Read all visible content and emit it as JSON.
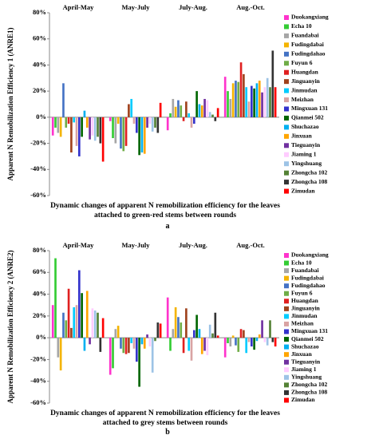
{
  "chart_data": [
    {
      "type": "bar",
      "y_label": "Apparent N Remobilization Efficiency 1 (ANRE1)",
      "x_label": "Dynamic changes of apparent N remobilization efficiency for the leaves attached to green-red stems between rounds",
      "caption": "a",
      "categories": [
        "April-May",
        "May-July",
        "July-Aug.",
        "Aug.-Oct."
      ],
      "ylim": [
        -60,
        80
      ],
      "yticks": [
        {
          "value": -60,
          "label": "-60%"
        },
        {
          "value": -40,
          "label": "-40%"
        },
        {
          "value": -20,
          "label": "-20%"
        },
        {
          "value": 0,
          "label": "0%"
        },
        {
          "value": 20,
          "label": "20%"
        },
        {
          "value": 40,
          "label": "40%"
        },
        {
          "value": 60,
          "label": "60%"
        },
        {
          "value": 80,
          "label": "80%"
        }
      ],
      "series": [
        {
          "name": "Duokangxiang",
          "color": "#ff33cc",
          "values": [
            -14,
            -3,
            -10,
            31
          ]
        },
        {
          "name": "Echa 10",
          "color": "#33cc33",
          "values": [
            -8,
            -16,
            3,
            20
          ]
        },
        {
          "name": "Fuandabai",
          "color": "#a6a6a6",
          "values": [
            -12,
            -20,
            14,
            14
          ]
        },
        {
          "name": "Fudingdabai",
          "color": "#f4b400",
          "values": [
            -15,
            -5,
            8,
            26
          ]
        },
        {
          "name": "Fudingdahao",
          "color": "#4472c4",
          "values": [
            26,
            -24,
            13,
            28
          ]
        },
        {
          "name": "Fuyun 6",
          "color": "#70ad47",
          "values": [
            -8,
            -26,
            9,
            27
          ]
        },
        {
          "name": "Huangdan",
          "color": "#e02020",
          "values": [
            -5,
            -22,
            -3,
            42
          ]
        },
        {
          "name": "Jinguanyin",
          "color": "#a0421d",
          "values": [
            -27,
            10,
            12,
            33
          ]
        },
        {
          "name": "Jinmudan",
          "color": "#00ccff",
          "values": [
            -4,
            14,
            3,
            23
          ]
        },
        {
          "name": "Meizhan",
          "color": "#d9a3a3",
          "values": [
            -22,
            -5,
            -8,
            12
          ]
        },
        {
          "name": "Mingxuan 131",
          "color": "#3333cc",
          "values": [
            -30,
            -12,
            -5,
            24
          ]
        },
        {
          "name": "Qianmei 502",
          "color": "#006600",
          "values": [
            -15,
            -29,
            20,
            22
          ]
        },
        {
          "name": "Shuchazao",
          "color": "#00b0f0",
          "values": [
            5,
            -27,
            10,
            26
          ]
        },
        {
          "name": "Jinxuan",
          "color": "#ffa500",
          "values": [
            -8,
            -28,
            9,
            28
          ]
        },
        {
          "name": "Tieguanyin",
          "color": "#7030a0",
          "values": [
            -17,
            -8,
            14,
            19
          ]
        },
        {
          "name": "Jiaming 1",
          "color": "#ffccff",
          "values": [
            -14,
            -5,
            13,
            23
          ]
        },
        {
          "name": "Yingshuang",
          "color": "#9dc3e6",
          "values": [
            -18,
            -11,
            4,
            30
          ]
        },
        {
          "name": "Zhongcha 102",
          "color": "#548235",
          "values": [
            -15,
            -8,
            2,
            23
          ]
        },
        {
          "name": "Zhongcha 108",
          "color": "#333333",
          "values": [
            -20,
            -12,
            -3,
            51
          ]
        },
        {
          "name": "Zimudan",
          "color": "#ff0000",
          "values": [
            -34,
            11,
            7,
            23
          ]
        }
      ]
    },
    {
      "type": "bar",
      "y_label": "Apparent N Remobilization Efficiency 2 (ANRE2)",
      "x_label": "Dynamic changes of apparent N remobilization efficiency for the leaves attached to grey stems between rounds",
      "caption": "b",
      "categories": [
        "April-May",
        "May-July",
        "July-Aug.",
        "Aug.-Oct."
      ],
      "ylim": [
        -60,
        80
      ],
      "yticks": [
        {
          "value": -60,
          "label": "-60%"
        },
        {
          "value": -40,
          "label": "-40%"
        },
        {
          "value": -20,
          "label": "-20%"
        },
        {
          "value": 0,
          "label": "0%"
        },
        {
          "value": 20,
          "label": "20%"
        },
        {
          "value": 40,
          "label": "40%"
        },
        {
          "value": 60,
          "label": "60%"
        },
        {
          "value": 80,
          "label": "80%"
        }
      ],
      "series": [
        {
          "name": "Duokangxiang",
          "color": "#ff33cc",
          "values": [
            30,
            -34,
            37,
            -18
          ]
        },
        {
          "name": "Echa 10",
          "color": "#33cc33",
          "values": [
            73,
            -28,
            -12,
            -5
          ]
        },
        {
          "name": "Fuandabai",
          "color": "#a6a6a6",
          "values": [
            -18,
            8,
            8,
            -8
          ]
        },
        {
          "name": "Fudingdabai",
          "color": "#f4b400",
          "values": [
            -30,
            11,
            28,
            2
          ]
        },
        {
          "name": "Fudingdahao",
          "color": "#4472c4",
          "values": [
            23,
            -10,
            19,
            -7
          ]
        },
        {
          "name": "Fuyun 6",
          "color": "#70ad47",
          "values": [
            16,
            -14,
            14,
            -13
          ]
        },
        {
          "name": "Huangdan",
          "color": "#e02020",
          "values": [
            45,
            -15,
            -14,
            8
          ]
        },
        {
          "name": "Jinguanyin",
          "color": "#a0421d",
          "values": [
            9,
            -14,
            27,
            7
          ]
        },
        {
          "name": "Jinmudan",
          "color": "#00ccff",
          "values": [
            28,
            -5,
            -12,
            -14
          ]
        },
        {
          "name": "Meizhan",
          "color": "#d9a3a3",
          "values": [
            30,
            -10,
            -21,
            -4
          ]
        },
        {
          "name": "Mingxuan 131",
          "color": "#3333cc",
          "values": [
            62,
            -22,
            7,
            -8
          ]
        },
        {
          "name": "Qianmei 502",
          "color": "#006600",
          "values": [
            41,
            -45,
            21,
            -11
          ]
        },
        {
          "name": "Shuchazao",
          "color": "#00b0f0",
          "values": [
            -12,
            -6,
            8,
            -3
          ]
        },
        {
          "name": "Jinxuan",
          "color": "#ffa500",
          "values": [
            43,
            -10,
            -15,
            3
          ]
        },
        {
          "name": "Tieguanyin",
          "color": "#7030a0",
          "values": [
            -6,
            3,
            -12,
            16
          ]
        },
        {
          "name": "Jiaming 1",
          "color": "#ffccff",
          "values": [
            27,
            -8,
            -16,
            -4
          ]
        },
        {
          "name": "Yingshuang",
          "color": "#9dc3e6",
          "values": [
            25,
            -32,
            12,
            -7
          ]
        },
        {
          "name": "Zhongcha 102",
          "color": "#548235",
          "values": [
            23,
            -3,
            4,
            16
          ]
        },
        {
          "name": "Zhongcha 108",
          "color": "#333333",
          "values": [
            -13,
            14,
            23,
            -4
          ]
        },
        {
          "name": "Zimudan",
          "color": "#ff0000",
          "values": [
            18,
            13,
            2,
            -8
          ]
        }
      ]
    }
  ]
}
